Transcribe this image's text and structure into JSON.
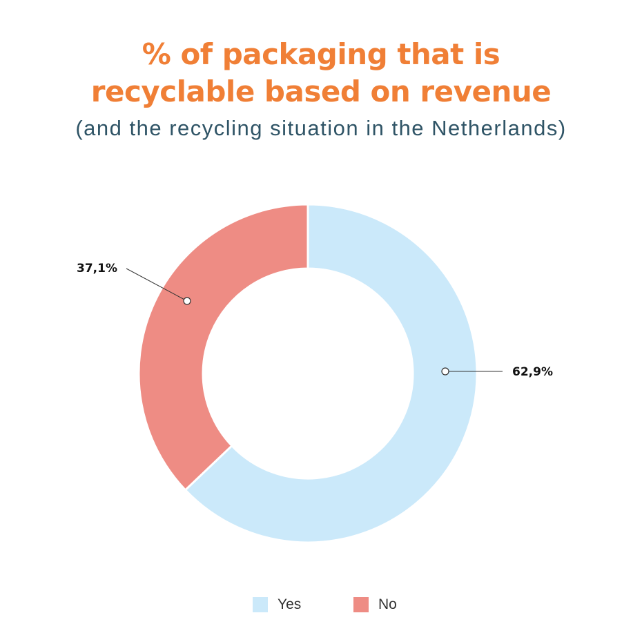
{
  "chart_data": {
    "type": "pie",
    "variant": "donut",
    "title": "% of packaging that is recyclable based on revenue",
    "title_lines": [
      "% of packaging that is",
      "recyclable based on revenue"
    ],
    "subtitle": "(and the recycling situation in the Netherlands)",
    "categories": [
      "Yes",
      "No"
    ],
    "values": [
      62.9,
      37.1
    ],
    "value_labels": [
      "62,9%",
      "37,1%"
    ],
    "colors": [
      "#cbe9fa",
      "#ee8c84"
    ],
    "legend_position": "bottom-center",
    "colors_meta": {
      "title": "#f07f36",
      "subtitle": "#2f5466"
    }
  }
}
